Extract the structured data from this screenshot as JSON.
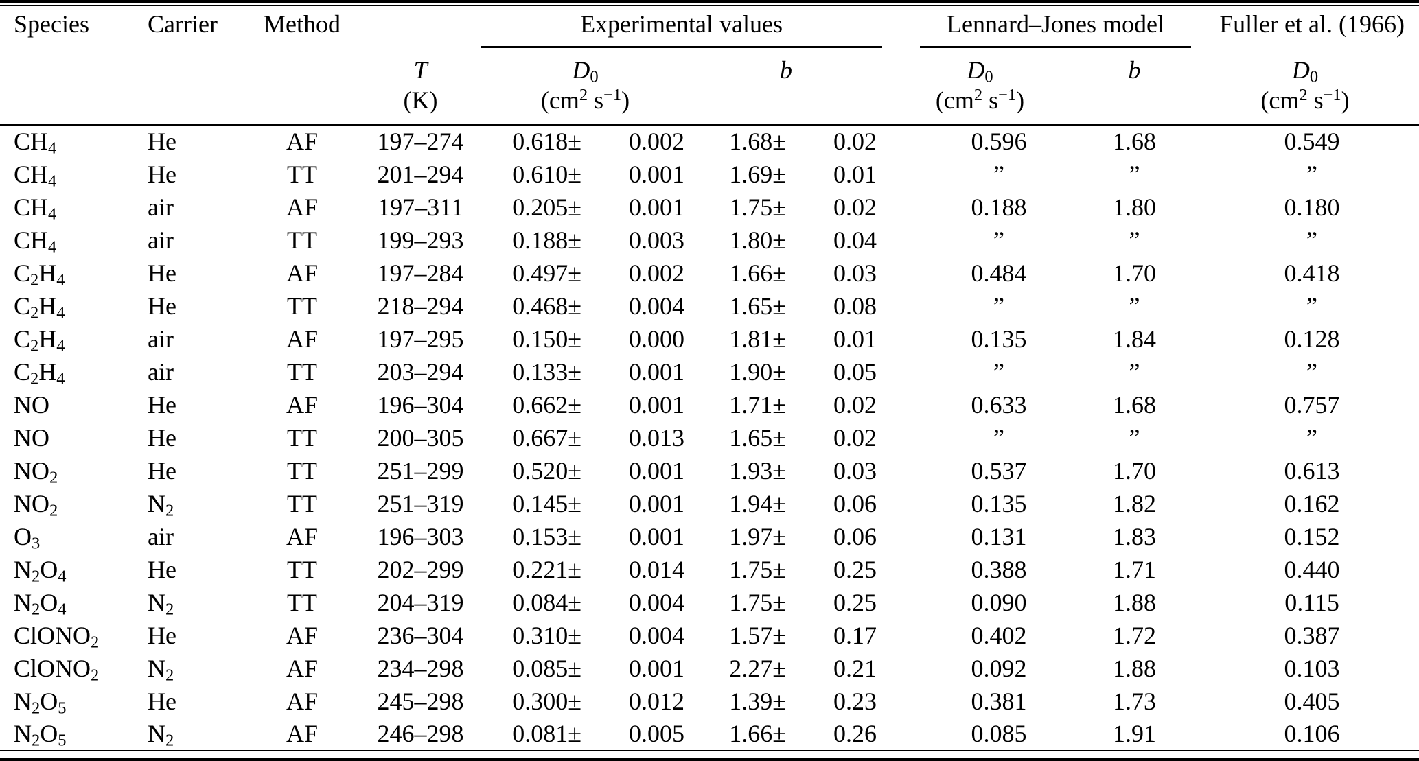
{
  "page": {
    "background": "#ffffff",
    "text_color": "#000000"
  },
  "table": {
    "columns": {
      "species": "Species",
      "carrier": "Carrier",
      "method": "Method"
    },
    "groups": {
      "experimental": "Experimental values",
      "lennard_jones": "Lennard–Jones model",
      "fuller": "Fuller et al. (1966)"
    },
    "subheaders": {
      "t_symbol": "T",
      "t_unit": "(K)",
      "d0_base": "D",
      "d0_sub": "0",
      "b_symbol": "b",
      "unit_open": "(cm",
      "unit_sup1": "2",
      "unit_mid": " s",
      "unit_sup2": "−1",
      "unit_close": ")"
    },
    "rows": [
      {
        "species": "CH4",
        "carrier": "He",
        "method": "AF",
        "temp": "197–274",
        "d0": "0.618±",
        "d0_err": "0.002",
        "b": "1.68±",
        "b_err": "0.02",
        "lj_d0": "0.596",
        "lj_b": "1.68",
        "fuller_d0": "0.549"
      },
      {
        "species": "CH4",
        "carrier": "He",
        "method": "TT",
        "temp": "201–294",
        "d0": "0.610±",
        "d0_err": "0.001",
        "b": "1.69±",
        "b_err": "0.01",
        "lj_d0": "”",
        "lj_b": "”",
        "fuller_d0": "”"
      },
      {
        "species": "CH4",
        "carrier": "air",
        "method": "AF",
        "temp": "197–311",
        "d0": "0.205±",
        "d0_err": "0.001",
        "b": "1.75±",
        "b_err": "0.02",
        "lj_d0": "0.188",
        "lj_b": "1.80",
        "fuller_d0": "0.180"
      },
      {
        "species": "CH4",
        "carrier": "air",
        "method": "TT",
        "temp": "199–293",
        "d0": "0.188±",
        "d0_err": "0.003",
        "b": "1.80±",
        "b_err": "0.04",
        "lj_d0": "”",
        "lj_b": "”",
        "fuller_d0": "”"
      },
      {
        "species": "C2H4",
        "carrier": "He",
        "method": "AF",
        "temp": "197–284",
        "d0": "0.497±",
        "d0_err": "0.002",
        "b": "1.66±",
        "b_err": "0.03",
        "lj_d0": "0.484",
        "lj_b": "1.70",
        "fuller_d0": "0.418"
      },
      {
        "species": "C2H4",
        "carrier": "He",
        "method": "TT",
        "temp": "218–294",
        "d0": "0.468±",
        "d0_err": "0.004",
        "b": "1.65±",
        "b_err": "0.08",
        "lj_d0": "”",
        "lj_b": "”",
        "fuller_d0": "”"
      },
      {
        "species": "C2H4",
        "carrier": "air",
        "method": "AF",
        "temp": "197–295",
        "d0": "0.150±",
        "d0_err": "0.000",
        "b": "1.81±",
        "b_err": "0.01",
        "lj_d0": "0.135",
        "lj_b": "1.84",
        "fuller_d0": "0.128"
      },
      {
        "species": "C2H4",
        "carrier": "air",
        "method": "TT",
        "temp": "203–294",
        "d0": "0.133±",
        "d0_err": "0.001",
        "b": "1.90±",
        "b_err": "0.05",
        "lj_d0": "”",
        "lj_b": "”",
        "fuller_d0": "”"
      },
      {
        "species": "NO",
        "carrier": "He",
        "method": "AF",
        "temp": "196–304",
        "d0": "0.662±",
        "d0_err": "0.001",
        "b": "1.71±",
        "b_err": "0.02",
        "lj_d0": "0.633",
        "lj_b": "1.68",
        "fuller_d0": "0.757"
      },
      {
        "species": "NO",
        "carrier": "He",
        "method": "TT",
        "temp": "200–305",
        "d0": "0.667±",
        "d0_err": "0.013",
        "b": "1.65±",
        "b_err": "0.02",
        "lj_d0": "”",
        "lj_b": "”",
        "fuller_d0": "”"
      },
      {
        "species": "NO2",
        "carrier": "He",
        "method": "TT",
        "temp": "251–299",
        "d0": "0.520±",
        "d0_err": "0.001",
        "b": "1.93±",
        "b_err": "0.03",
        "lj_d0": "0.537",
        "lj_b": "1.70",
        "fuller_d0": "0.613"
      },
      {
        "species": "NO2",
        "carrier": "N2",
        "method": "TT",
        "temp": "251–319",
        "d0": "0.145±",
        "d0_err": "0.001",
        "b": "1.94±",
        "b_err": "0.06",
        "lj_d0": "0.135",
        "lj_b": "1.82",
        "fuller_d0": "0.162"
      },
      {
        "species": "O3",
        "carrier": "air",
        "method": "AF",
        "temp": "196–303",
        "d0": "0.153±",
        "d0_err": "0.001",
        "b": "1.97±",
        "b_err": "0.06",
        "lj_d0": "0.131",
        "lj_b": "1.83",
        "fuller_d0": "0.152"
      },
      {
        "species": "N2O4",
        "carrier": "He",
        "method": "TT",
        "temp": "202–299",
        "d0": "0.221±",
        "d0_err": "0.014",
        "b": "1.75±",
        "b_err": "0.25",
        "lj_d0": "0.388",
        "lj_b": "1.71",
        "fuller_d0": "0.440"
      },
      {
        "species": "N2O4",
        "carrier": "N2",
        "method": "TT",
        "temp": "204–319",
        "d0": "0.084±",
        "d0_err": "0.004",
        "b": "1.75±",
        "b_err": "0.25",
        "lj_d0": "0.090",
        "lj_b": "1.88",
        "fuller_d0": "0.115"
      },
      {
        "species": "ClONO2",
        "carrier": "He",
        "method": "AF",
        "temp": "236–304",
        "d0": "0.310±",
        "d0_err": "0.004",
        "b": "1.57±",
        "b_err": "0.17",
        "lj_d0": "0.402",
        "lj_b": "1.72",
        "fuller_d0": "0.387"
      },
      {
        "species": "ClONO2",
        "carrier": "N2",
        "method": "AF",
        "temp": "234–298",
        "d0": "0.085±",
        "d0_err": "0.001",
        "b": "2.27±",
        "b_err": "0.21",
        "lj_d0": "0.092",
        "lj_b": "1.88",
        "fuller_d0": "0.103"
      },
      {
        "species": "N2O5",
        "carrier": "He",
        "method": "AF",
        "temp": "245–298",
        "d0": "0.300±",
        "d0_err": "0.012",
        "b": "1.39±",
        "b_err": "0.23",
        "lj_d0": "0.381",
        "lj_b": "1.73",
        "fuller_d0": "0.405"
      },
      {
        "species": "N2O5",
        "carrier": "N2",
        "method": "AF",
        "temp": "246–298",
        "d0": "0.081±",
        "d0_err": "0.005",
        "b": "1.66±",
        "b_err": "0.26",
        "lj_d0": "0.085",
        "lj_b": "1.91",
        "fuller_d0": "0.106"
      }
    ]
  }
}
